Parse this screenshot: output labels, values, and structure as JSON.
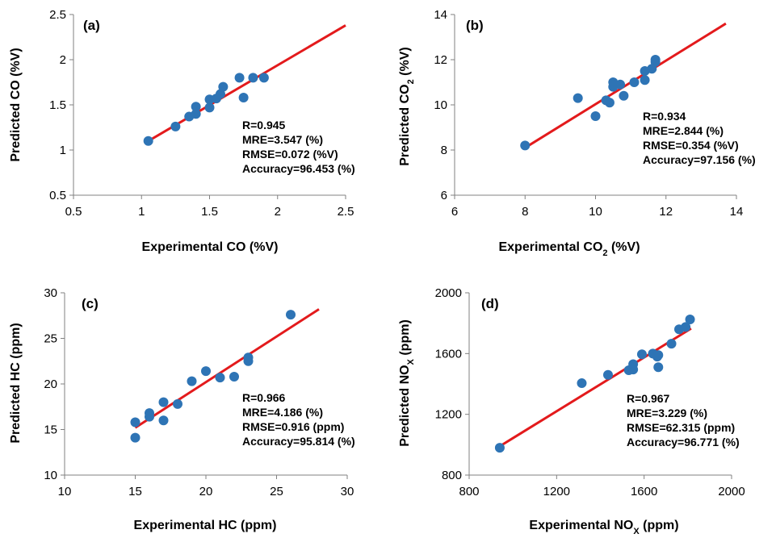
{
  "chart_data": [
    {
      "type": "scatter",
      "panel_label": "(a)",
      "xlabel": "Experimental CO (%V)",
      "ylabel": "Predicted CO (%V)",
      "xlim": [
        0.5,
        2.5
      ],
      "ylim": [
        0.5,
        2.5
      ],
      "xticks": [
        "0.5",
        "1",
        "1.5",
        "2",
        "2.5"
      ],
      "yticks": [
        "0.5",
        "1",
        "1.5",
        "2",
        "2.5"
      ],
      "points": [
        [
          1.05,
          1.1
        ],
        [
          1.25,
          1.26
        ],
        [
          1.35,
          1.37
        ],
        [
          1.4,
          1.4
        ],
        [
          1.4,
          1.48
        ],
        [
          1.5,
          1.47
        ],
        [
          1.5,
          1.56
        ],
        [
          1.55,
          1.57
        ],
        [
          1.58,
          1.62
        ],
        [
          1.6,
          1.7
        ],
        [
          1.72,
          1.8
        ],
        [
          1.75,
          1.58
        ],
        [
          1.82,
          1.8
        ],
        [
          1.9,
          1.8
        ]
      ],
      "fit_line": {
        "x": [
          1.05,
          2.5
        ],
        "y": [
          1.1,
          2.38
        ]
      },
      "stats": [
        "R=0.945",
        "MRE=3.547 (%)",
        "RMSE=0.072 (%V)",
        "Accuracy=96.453 (%)"
      ],
      "point_color": "#2e74b5",
      "line_color": "#e31a1c"
    },
    {
      "type": "scatter",
      "panel_label": "(b)",
      "xlabel": "Experimental CO",
      "xlabel_sub": "2",
      "xlabel_tail": " (%V)",
      "ylabel": "Predicted CO",
      "ylabel_sub": "2",
      "ylabel_tail": " (%V)",
      "xlim": [
        6,
        14
      ],
      "ylim": [
        6,
        14
      ],
      "xticks": [
        "6",
        "8",
        "10",
        "12",
        "14"
      ],
      "yticks": [
        "6",
        "8",
        "10",
        "12",
        "14"
      ],
      "points": [
        [
          8,
          8.2
        ],
        [
          9.5,
          10.3
        ],
        [
          10,
          9.5
        ],
        [
          10.3,
          10.2
        ],
        [
          10.4,
          10.1
        ],
        [
          10.5,
          10.8
        ],
        [
          10.5,
          11.0
        ],
        [
          10.7,
          10.9
        ],
        [
          10.8,
          10.4
        ],
        [
          11.1,
          11.0
        ],
        [
          11.4,
          11.1
        ],
        [
          11.4,
          11.5
        ],
        [
          11.6,
          11.6
        ],
        [
          11.7,
          11.9
        ],
        [
          11.7,
          12.0
        ]
      ],
      "fit_line": {
        "x": [
          8,
          13.7
        ],
        "y": [
          8.1,
          13.6
        ]
      },
      "stats": [
        "R=0.934",
        "MRE=2.844 (%)",
        "RMSE=0.354 (%V)",
        "Accuracy=97.156 (%)"
      ],
      "point_color": "#2e74b5",
      "line_color": "#e31a1c"
    },
    {
      "type": "scatter",
      "panel_label": "(c)",
      "xlabel": "Experimental HC (ppm)",
      "ylabel": "Predicted HC (ppm)",
      "xlim": [
        10,
        30
      ],
      "ylim": [
        10,
        30
      ],
      "xticks": [
        "10",
        "15",
        "20",
        "25",
        "30"
      ],
      "yticks": [
        "10",
        "15",
        "20",
        "25",
        "30"
      ],
      "points": [
        [
          15,
          14.1
        ],
        [
          15,
          15.8
        ],
        [
          16,
          16.4
        ],
        [
          16,
          16.8
        ],
        [
          17,
          16.0
        ],
        [
          17,
          18.0
        ],
        [
          18,
          17.8
        ],
        [
          19,
          20.3
        ],
        [
          20,
          21.4
        ],
        [
          21,
          20.7
        ],
        [
          22,
          20.8
        ],
        [
          23,
          22.5
        ],
        [
          23,
          22.9
        ],
        [
          26,
          27.6
        ]
      ],
      "fit_line": {
        "x": [
          15,
          28
        ],
        "y": [
          15.2,
          28.2
        ]
      },
      "stats": [
        "R=0.966",
        "MRE=4.186 (%)",
        "RMSE=0.916 (ppm)",
        "Accuracy=95.814 (%)"
      ],
      "point_color": "#2e74b5",
      "line_color": "#e31a1c"
    },
    {
      "type": "scatter",
      "panel_label": "(d)",
      "xlabel": "Experimental NO",
      "xlabel_sub": "X",
      "xlabel_tail": " (ppm)",
      "ylabel": "Predicted NO",
      "ylabel_sub": "X",
      "ylabel_tail": " (ppm)",
      "xlim": [
        800,
        2000
      ],
      "ylim": [
        800,
        2000
      ],
      "xticks": [
        "800",
        "1200",
        "1600",
        "2000"
      ],
      "yticks": [
        "800",
        "1200",
        "1600",
        "2000"
      ],
      "points": [
        [
          940,
          980
        ],
        [
          1315,
          1405
        ],
        [
          1435,
          1460
        ],
        [
          1530,
          1490
        ],
        [
          1550,
          1495
        ],
        [
          1550,
          1530
        ],
        [
          1590,
          1595
        ],
        [
          1640,
          1600
        ],
        [
          1660,
          1580
        ],
        [
          1665,
          1510
        ],
        [
          1665,
          1590
        ],
        [
          1725,
          1665
        ],
        [
          1760,
          1760
        ],
        [
          1790,
          1775
        ],
        [
          1810,
          1825
        ]
      ],
      "fit_line": {
        "x": [
          940,
          1815
        ],
        "y": [
          990,
          1765
        ]
      },
      "stats": [
        "R=0.967",
        "MRE=3.229 (%)",
        "RMSE=62.315 (ppm)",
        "Accuracy=96.771 (%)"
      ],
      "point_color": "#2e74b5",
      "line_color": "#e31a1c"
    }
  ]
}
